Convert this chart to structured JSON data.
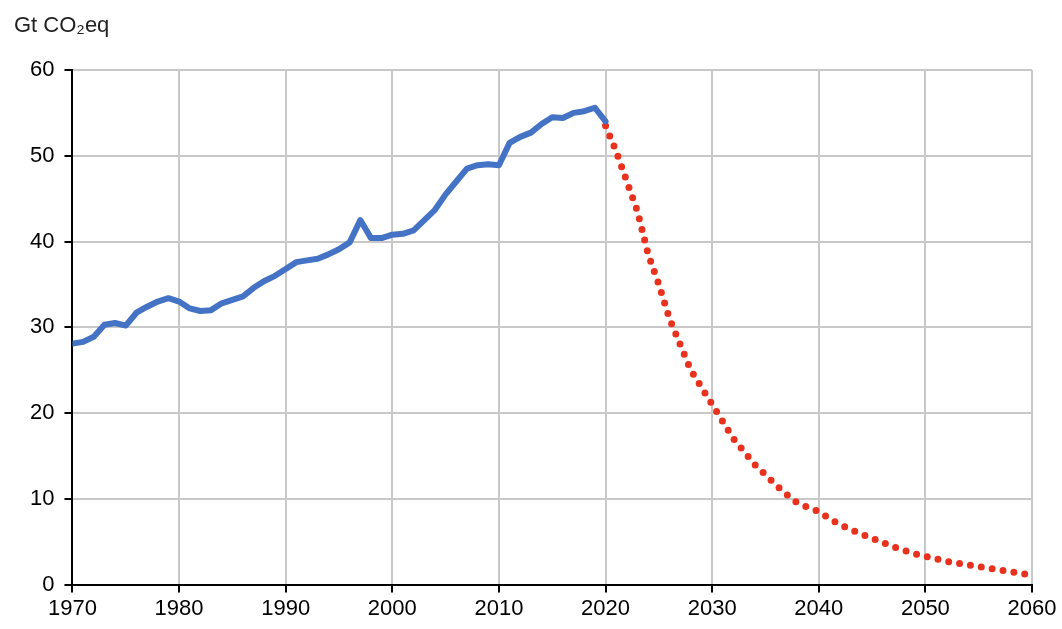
{
  "chart_data": {
    "type": "line",
    "ylabel": "Gt CO₂eq",
    "grid": true,
    "legend": false,
    "marker": "none",
    "xlim": [
      1970,
      2060
    ],
    "xticks": [
      1970,
      1980,
      1990,
      2000,
      2010,
      2020,
      2030,
      2040,
      2050,
      2060
    ],
    "ylim": [
      0,
      60
    ],
    "yticks": [
      0,
      10,
      20,
      30,
      40,
      50,
      60
    ],
    "series": [
      {
        "color": "#4472c4",
        "line_style": "solid",
        "x": [
          1970,
          1971,
          1972,
          1973,
          1974,
          1975,
          1976,
          1977,
          1978,
          1979,
          1980,
          1981,
          1982,
          1983,
          1984,
          1985,
          1986,
          1987,
          1988,
          1989,
          1990,
          1991,
          1992,
          1993,
          1994,
          1995,
          1996,
          1997,
          1998,
          1999,
          2000,
          2001,
          2002,
          2003,
          2004,
          2005,
          2006,
          2007,
          2008,
          2009,
          2010,
          2011,
          2012,
          2013,
          2014,
          2015,
          2016,
          2017,
          2018,
          2019,
          2020
        ],
        "values": [
          28.1,
          28.3,
          28.9,
          30.3,
          30.5,
          30.2,
          31.7,
          32.4,
          33,
          33.4,
          33,
          32.2,
          31.9,
          32,
          32.8,
          33.2,
          33.6,
          34.6,
          35.4,
          36,
          36.8,
          37.6,
          37.8,
          38,
          38.5,
          39.1,
          39.9,
          42.5,
          40.4,
          40.4,
          40.8,
          40.9,
          41.3,
          42.5,
          43.7,
          45.5,
          47,
          48.5,
          48.9,
          49,
          48.9,
          51.5,
          52.2,
          52.7,
          53.7,
          54.5,
          54.4,
          55,
          55.2,
          55.6,
          54
        ]
      },
      {
        "color": "#e8321e",
        "line_style": "dotted",
        "x": [
          2020,
          2021,
          2022,
          2023,
          2024,
          2025,
          2026,
          2027,
          2028,
          2029,
          2030,
          2031,
          2032,
          2033,
          2034,
          2035,
          2036,
          2037,
          2038,
          2039,
          2040,
          2041,
          2042,
          2043,
          2044,
          2045,
          2046,
          2047,
          2048,
          2049,
          2050,
          2051,
          2052,
          2053,
          2054,
          2055,
          2056,
          2057,
          2058,
          2059,
          2060
        ],
        "values": [
          53.5,
          50.5,
          47,
          43.5,
          38.5,
          35,
          31,
          28,
          25,
          23,
          21,
          19,
          17,
          15.5,
          14,
          12.8,
          11.6,
          10.5,
          9.5,
          9,
          8.5,
          7.7,
          7,
          6.4,
          5.9,
          5.4,
          4.9,
          4.4,
          4,
          3.6,
          3.3,
          3,
          2.7,
          2.5,
          2.3,
          2.1,
          1.9,
          1.7,
          1.5,
          1.3,
          1.1
        ]
      }
    ]
  }
}
